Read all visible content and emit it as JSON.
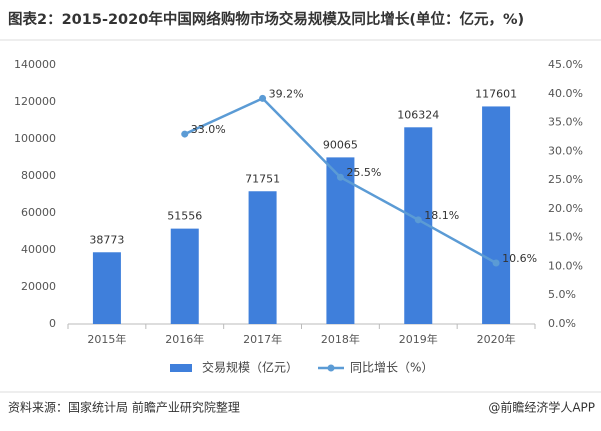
{
  "chart_data": {
    "type": "bar",
    "title": "图表2：2015-2020年中国网络购物市场交易规模及同比增长(单位：亿元，%)",
    "categories": [
      "2015年",
      "2016年",
      "2017年",
      "2018年",
      "2019年",
      "2020年"
    ],
    "series": [
      {
        "name": "交易规模（亿元）",
        "type": "bar",
        "color": "#3f7fdb",
        "values": [
          38773,
          51556,
          71751,
          90065,
          106324,
          117601
        ]
      },
      {
        "name": "同比增长（%）",
        "type": "line",
        "axis": "y2",
        "color": "#5b9bd5",
        "values": [
          null,
          33.0,
          39.2,
          25.5,
          18.1,
          10.6
        ],
        "value_labels": [
          null,
          "33.0%",
          "39.2%",
          "25.5%",
          "18.1%",
          "10.6%"
        ]
      }
    ],
    "ylim": [
      0,
      140000
    ],
    "yticks": [
      0,
      20000,
      40000,
      60000,
      80000,
      100000,
      120000,
      140000
    ],
    "y2lim": [
      0,
      45
    ],
    "y2ticks": [
      {
        "value": 0,
        "label": "0.0%"
      },
      {
        "value": 5,
        "label": "5.0%"
      },
      {
        "value": 10,
        "label": "10.0%"
      },
      {
        "value": 15,
        "label": "15.0%"
      },
      {
        "value": 20,
        "label": "20.0%"
      },
      {
        "value": 25,
        "label": "25.0%"
      },
      {
        "value": 30,
        "label": "30.0%"
      },
      {
        "value": 35,
        "label": "35.0%"
      },
      {
        "value": 40,
        "label": "40.0%"
      },
      {
        "value": 45,
        "label": "45.0%"
      }
    ],
    "source": "资料来源：国家统计局 前瞻产业研究院整理",
    "credit": "@前瞻经济学人APP"
  }
}
